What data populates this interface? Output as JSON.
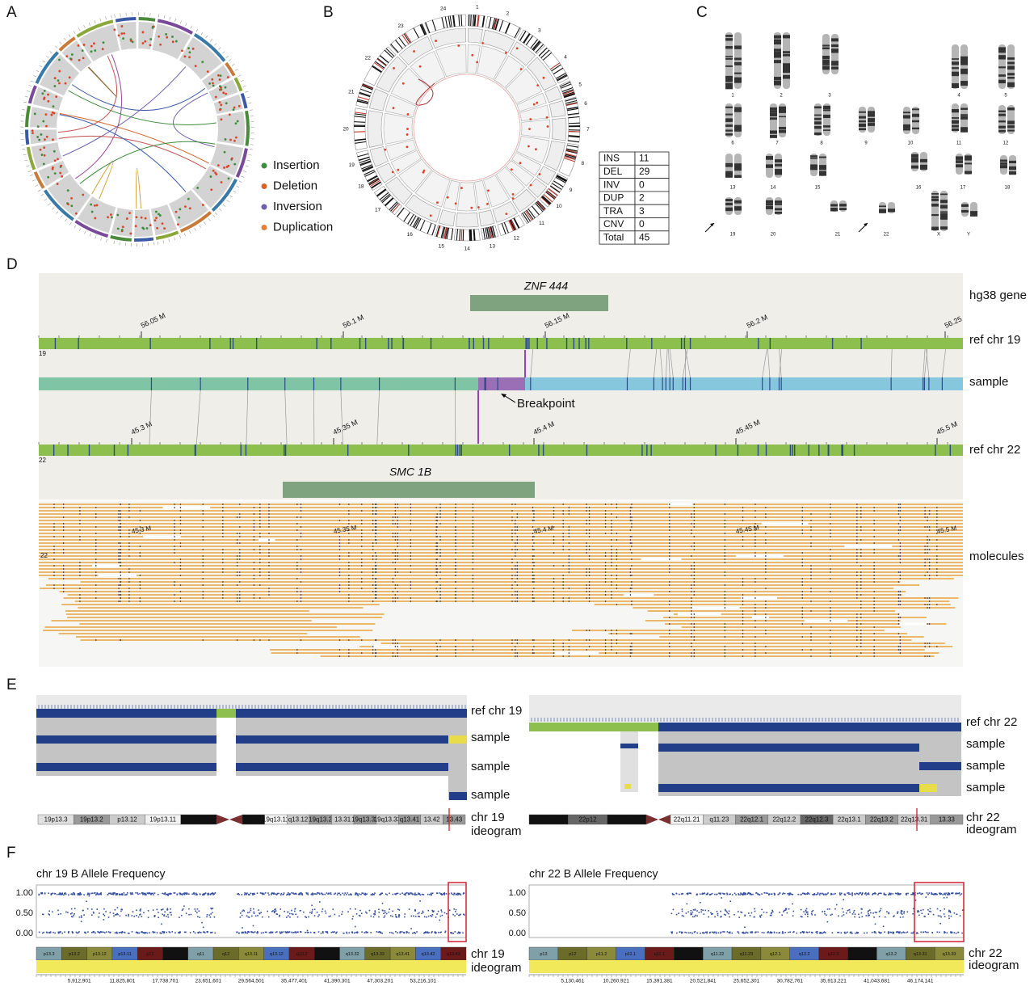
{
  "panels": [
    "A",
    "B",
    "C",
    "D",
    "E",
    "F"
  ],
  "legend": [
    "Insertion",
    "Deletion",
    "Inversion",
    "Duplication"
  ],
  "circos_b_labels": [
    "1",
    "2",
    "3",
    "4",
    "5",
    "6",
    "7",
    "8",
    "9",
    "10",
    "11",
    "12",
    "13",
    "14",
    "15",
    "16",
    "17",
    "18",
    "19",
    "20",
    "21",
    "22",
    "23",
    "24"
  ],
  "sv_table": [
    [
      "INS",
      11
    ],
    [
      "DEL",
      29
    ],
    [
      "INV",
      0
    ],
    [
      "DUP",
      2
    ],
    [
      "TRA",
      3
    ],
    [
      "CNV",
      0
    ],
    [
      "Total",
      45
    ]
  ],
  "karyotype": [
    "1",
    "2",
    "3",
    "4",
    "5",
    "6",
    "7",
    "8",
    "9",
    "10",
    "11",
    "12",
    "13",
    "14",
    "15",
    "16",
    "17",
    "18",
    "19",
    "20",
    "21",
    "22",
    "X",
    "Y"
  ],
  "panel_d": {
    "gene_top": "ZNF 444",
    "gene_bottom": "SMC 1B",
    "tracks": [
      "hg38 gene",
      "ref chr 19",
      "sample",
      "ref chr 22",
      "molecules"
    ],
    "chr19_ticks": [
      "56.05 M",
      "56.1 M",
      "56.15 M",
      "56.2 M",
      "56.25"
    ],
    "chr22_ticks": [
      "45.3 M",
      "45.35 M",
      "45.4 M",
      "45.45 M",
      "45.5 M"
    ],
    "chr19_id": "19",
    "chr22_id": "22",
    "breakpoint": "Breakpoint"
  },
  "panel_e": {
    "left_tracks": [
      "ref chr 19",
      "sample",
      "sample",
      "sample"
    ],
    "right_tracks": [
      "ref chr 22",
      "sample",
      "sample",
      "sample"
    ],
    "left_ideogram": [
      "chr 19",
      "ideogram"
    ],
    "right_ideogram": [
      "chr 22",
      "ideogram"
    ],
    "left_bands": [
      "19p13.3",
      "19p13.2",
      "p13.12",
      "19p13.11",
      "19p12",
      "19q12",
      "19q13.11",
      "q13.12",
      "19q13.2",
      "13.31",
      "19q13.32",
      "19q13.33",
      "q13.41",
      "13.42",
      "13.43"
    ],
    "right_bands": [
      "22p13",
      "22p12",
      "22p11.2",
      "22q11.21",
      "q11.23",
      "22q12.1",
      "22q12.2",
      "22q12.3",
      "22q13.1",
      "22q13.2",
      "22q13.31",
      "13.33"
    ]
  },
  "panel_f": {
    "left_title": "chr 19 B Allele Frequency",
    "right_title": "chr 22 B Allele Frequency",
    "yticks": [
      "1.00",
      "0.50",
      "0.00"
    ],
    "left_ideogram": [
      "chr 19",
      "ideogram"
    ],
    "right_ideogram": [
      "chr 22",
      "ideogram"
    ],
    "left_bands": [
      "p13.3",
      "p13.2",
      "p13.12",
      "p13.11",
      "p12",
      "p11",
      "q11",
      "q12",
      "q13.11",
      "q13.12",
      "q13.2",
      "q13.31",
      "q13.32",
      "q13.33",
      "q13.41",
      "q13.42",
      "q13.43"
    ],
    "right_bands": [
      "p13",
      "p12",
      "p11.2",
      "p11.1",
      "q11.1",
      "q11.21",
      "q11.22",
      "q11.23",
      "q12.1",
      "q12.2",
      "q12.3",
      "q13.1",
      "q13.2",
      "q13.31",
      "q13.33"
    ],
    "left_positions": [
      "5,912,901",
      "11,825,801",
      "17,738,701",
      "23,651,601",
      "29,564,501",
      "35,477,401",
      "41,390,301",
      "47,303,201",
      "53,216,101"
    ],
    "right_positions": [
      "5,130,461",
      "10,260,921",
      "15,391,381",
      "20,521,841",
      "25,652,301",
      "30,782,761",
      "35,913,221",
      "41,043,681",
      "46,174,141"
    ]
  }
}
